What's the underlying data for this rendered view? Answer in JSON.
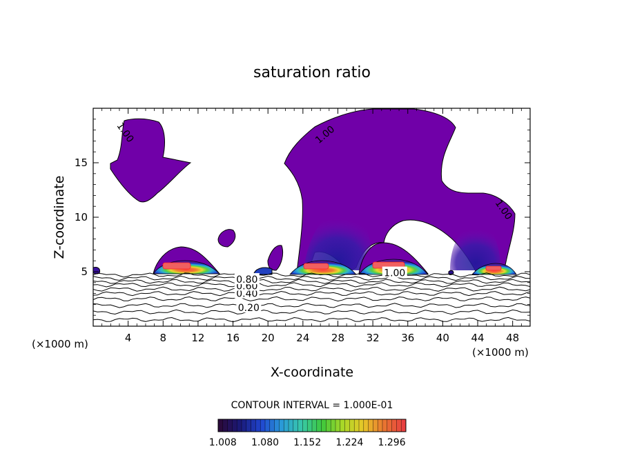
{
  "chart_data": {
    "type": "contour",
    "title": "saturation ratio",
    "xlabel": "X-coordinate",
    "ylabel": "Z-coordinate",
    "x_unit_left": "(×1000 m)",
    "x_unit_right": "(×1000 m)",
    "xlim": [
      0,
      50
    ],
    "ylim": [
      0,
      20
    ],
    "x_ticks": [
      "4",
      "8",
      "12",
      "16",
      "20",
      "24",
      "28",
      "32",
      "36",
      "40",
      "44",
      "48"
    ],
    "y_ticks": [
      "5",
      "10",
      "15"
    ],
    "contour_labels": [
      {
        "text": "0.20",
        "x": 17.8,
        "z": 1.7
      },
      {
        "text": "0.40",
        "x": 17.6,
        "z": 3.0
      },
      {
        "text": "0.60",
        "x": 17.6,
        "z": 3.7
      },
      {
        "text": "0.80",
        "x": 17.6,
        "z": 4.3
      },
      {
        "text": "1.00",
        "x": 3.7,
        "z": 17.8
      },
      {
        "text": "1.00",
        "x": 26.5,
        "z": 17.6
      },
      {
        "text": "1.00",
        "x": 47.0,
        "z": 10.7
      },
      {
        "text": "1.00",
        "x": 34.5,
        "z": 4.9
      }
    ],
    "contour_line_levels_z": [
      4.7,
      4.4,
      4.1,
      3.8,
      3.4,
      3.0,
      2.5,
      1.9,
      1.3,
      0.6
    ],
    "cloud_regions": [
      {
        "name": "anvil-left",
        "level": 1.02
      },
      {
        "name": "anvil-right",
        "level": 1.02
      },
      {
        "name": "cell-small-a",
        "level": 1.02
      },
      {
        "name": "cell-small-b",
        "level": 1.02
      },
      {
        "name": "cell-x10",
        "peak": 1.3
      },
      {
        "name": "cell-x25",
        "peak": 1.3
      },
      {
        "name": "cell-x34",
        "peak": 1.3
      },
      {
        "name": "cell-x46",
        "peak": 1.2
      }
    ],
    "colorbar": {
      "caption": "CONTOUR INTERVAL = 1.000E-01",
      "tick_labels": [
        "1.008",
        "1.080",
        "1.152",
        "1.224",
        "1.296"
      ],
      "range": [
        1.0,
        1.32
      ],
      "colors": [
        "#2a0a3c",
        "#1a1a7a",
        "#2046d0",
        "#2a9ad8",
        "#38c8a8",
        "#3ec83c",
        "#a8d828",
        "#e8c828",
        "#e87830",
        "#e84040"
      ]
    },
    "grid": false,
    "legend": "colorbar-bottom"
  }
}
